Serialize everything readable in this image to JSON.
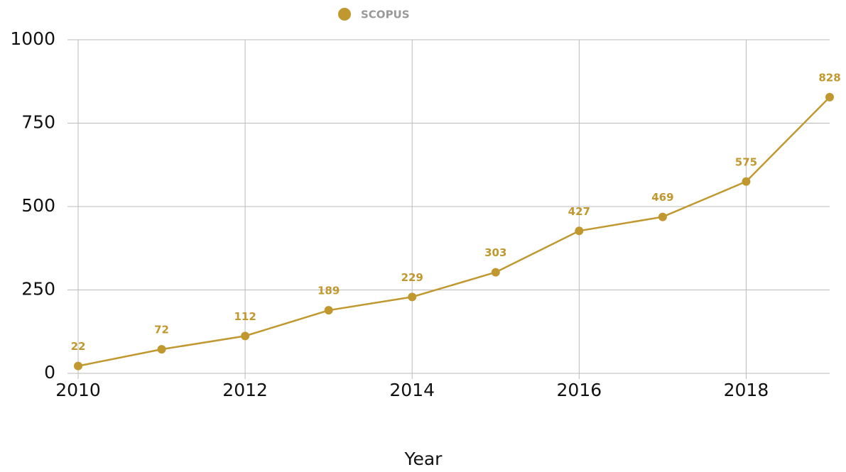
{
  "chart_data": {
    "type": "line",
    "x_label": "Year",
    "x": [
      2010,
      2011,
      2012,
      2013,
      2014,
      2015,
      2016,
      2017,
      2018,
      2019
    ],
    "series": [
      {
        "name": "SCOPUS",
        "color": "#c0982f",
        "values": [
          22,
          72,
          112,
          189,
          229,
          303,
          427,
          469,
          575,
          828
        ]
      }
    ],
    "xlim": [
      2010,
      2019
    ],
    "xticks": [
      2010,
      2012,
      2014,
      2016,
      2018
    ],
    "ylim": [
      0,
      1000
    ],
    "yticks": [
      0,
      250,
      500,
      750,
      1000
    ],
    "grid": true,
    "legend": "top"
  }
}
